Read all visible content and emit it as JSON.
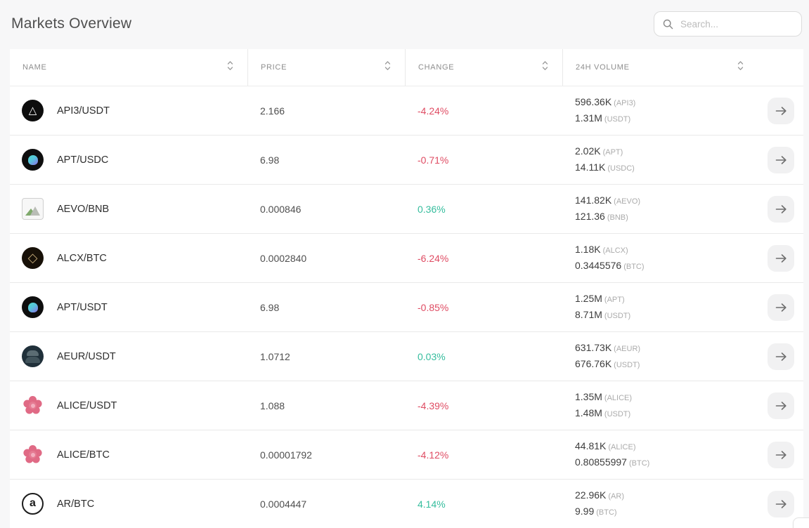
{
  "page": {
    "title": "Markets Overview"
  },
  "search": {
    "placeholder": "Search..."
  },
  "colors": {
    "positive": "#35bd9d",
    "negative": "#df4c63"
  },
  "table": {
    "columns": [
      {
        "label": "NAME"
      },
      {
        "label": "PRICE"
      },
      {
        "label": "CHANGE"
      },
      {
        "label": "24H VOLUME"
      }
    ],
    "rows": [
      {
        "pair": "API3/USDT",
        "icon": "api3",
        "price": "2.166",
        "change": "-4.24%",
        "direction": "down",
        "vol_base": "596.36K",
        "vol_base_unit": "(API3)",
        "vol_quote": "1.31M",
        "vol_quote_unit": "(USDT)"
      },
      {
        "pair": "APT/USDC",
        "icon": "apricot",
        "price": "6.98",
        "change": "-0.71%",
        "direction": "down",
        "vol_base": "2.02K",
        "vol_base_unit": "(APT)",
        "vol_quote": "14.11K",
        "vol_quote_unit": "(USDC)"
      },
      {
        "pair": "AEVO/BNB",
        "icon": "broken",
        "price": "0.000846",
        "change": "0.36%",
        "direction": "up",
        "vol_base": "141.82K",
        "vol_base_unit": "(AEVO)",
        "vol_quote": "121.36",
        "vol_quote_unit": "(BNB)"
      },
      {
        "pair": "ALCX/BTC",
        "icon": "alcx",
        "price": "0.0002840",
        "change": "-6.24%",
        "direction": "down",
        "vol_base": "1.18K",
        "vol_base_unit": "(ALCX)",
        "vol_quote": "0.3445576",
        "vol_quote_unit": "(BTC)"
      },
      {
        "pair": "APT/USDT",
        "icon": "apricot",
        "price": "6.98",
        "change": "-0.85%",
        "direction": "down",
        "vol_base": "1.25M",
        "vol_base_unit": "(APT)",
        "vol_quote": "8.71M",
        "vol_quote_unit": "(USDT)"
      },
      {
        "pair": "AEUR/USDT",
        "icon": "aeur",
        "price": "1.0712",
        "change": "0.03%",
        "direction": "up",
        "vol_base": "631.73K",
        "vol_base_unit": "(AEUR)",
        "vol_quote": "676.76K",
        "vol_quote_unit": "(USDT)"
      },
      {
        "pair": "ALICE/USDT",
        "icon": "alice",
        "price": "1.088",
        "change": "-4.39%",
        "direction": "down",
        "vol_base": "1.35M",
        "vol_base_unit": "(ALICE)",
        "vol_quote": "1.48M",
        "vol_quote_unit": "(USDT)"
      },
      {
        "pair": "ALICE/BTC",
        "icon": "alice",
        "price": "0.00001792",
        "change": "-4.12%",
        "direction": "down",
        "vol_base": "44.81K",
        "vol_base_unit": "(ALICE)",
        "vol_quote": "0.80855997",
        "vol_quote_unit": "(BTC)"
      },
      {
        "pair": "AR/BTC",
        "icon": "ar",
        "price": "0.0004447",
        "change": "4.14%",
        "direction": "up",
        "vol_base": "22.96K",
        "vol_base_unit": "(AR)",
        "vol_quote": "9.99",
        "vol_quote_unit": "(BTC)"
      }
    ]
  },
  "icon_glyphs": {
    "api3": "△",
    "alcx": "◇",
    "ar": "a"
  }
}
